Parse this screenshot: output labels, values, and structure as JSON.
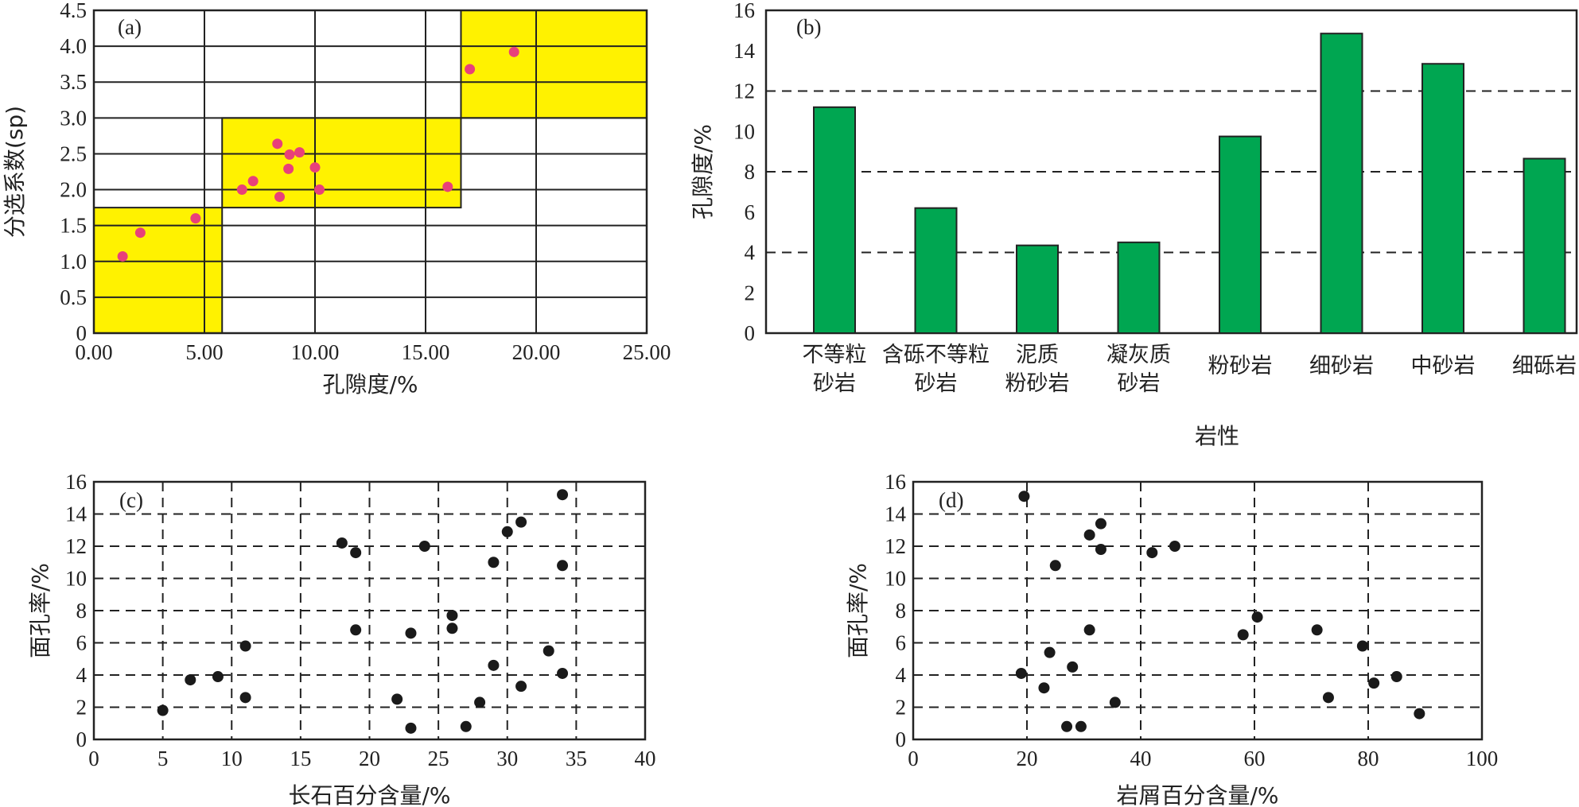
{
  "chart_data": [
    {
      "id": "a",
      "type": "scatter",
      "panel_label": "(a)",
      "xlabel": "孔隙度/%",
      "ylabel": "分选系数(sp)",
      "xlim": [
        0,
        25
      ],
      "ylim": [
        0,
        4.5
      ],
      "xticks": [
        "0.00",
        "5.00",
        "10.00",
        "15.00",
        "20.00",
        "25.00"
      ],
      "yticks": [
        "0",
        "0.5",
        "1.0",
        "1.5",
        "2.0",
        "2.5",
        "3.0",
        "3.5",
        "4.0",
        "4.5"
      ],
      "grid": true,
      "highlight_color": "#FFF200",
      "point_color": "#E8407A",
      "highlight_regions": [
        {
          "x": [
            0,
            5.8
          ],
          "y": [
            0,
            1.75
          ]
        },
        {
          "x": [
            5.8,
            16.6
          ],
          "y": [
            1.75,
            3.0
          ]
        },
        {
          "x": [
            16.6,
            25
          ],
          "y": [
            3.0,
            4.5
          ]
        }
      ],
      "points": [
        {
          "x": 1.3,
          "y": 1.07
        },
        {
          "x": 2.1,
          "y": 1.4
        },
        {
          "x": 4.6,
          "y": 1.6
        },
        {
          "x": 6.7,
          "y": 2.0
        },
        {
          "x": 7.2,
          "y": 2.12
        },
        {
          "x": 8.3,
          "y": 2.64
        },
        {
          "x": 8.4,
          "y": 1.9
        },
        {
          "x": 8.8,
          "y": 2.29
        },
        {
          "x": 8.85,
          "y": 2.49
        },
        {
          "x": 9.3,
          "y": 2.52
        },
        {
          "x": 10.0,
          "y": 2.31
        },
        {
          "x": 10.2,
          "y": 2.0
        },
        {
          "x": 16.0,
          "y": 2.04
        },
        {
          "x": 17.0,
          "y": 3.68
        },
        {
          "x": 19.0,
          "y": 3.92
        }
      ]
    },
    {
      "id": "b",
      "type": "bar",
      "panel_label": "(b)",
      "xlabel": "岩性",
      "ylabel": "孔隙度/%",
      "ylim": [
        0,
        16
      ],
      "yticks": [
        "0",
        "2",
        "4",
        "6",
        "8",
        "10",
        "12",
        "14",
        "16"
      ],
      "dashed_gridlines": [
        4,
        8,
        12
      ],
      "bar_color": "#00A651",
      "categories": [
        [
          "不等粒",
          "砂岩"
        ],
        [
          "含砾不等粒",
          "砂岩"
        ],
        [
          "泥质",
          "粉砂岩"
        ],
        [
          "凝灰质",
          "砂岩"
        ],
        [
          "粉砂岩"
        ],
        [
          "细砂岩"
        ],
        [
          "中砂岩"
        ],
        [
          "细砾岩"
        ]
      ],
      "values": [
        11.2,
        6.2,
        4.35,
        4.5,
        9.75,
        14.85,
        13.35,
        8.65
      ]
    },
    {
      "id": "c",
      "type": "scatter",
      "panel_label": "(c)",
      "xlabel": "长石百分含量/%",
      "ylabel": "面孔率/%",
      "xlim": [
        0,
        40
      ],
      "ylim": [
        0,
        16
      ],
      "xticks": [
        "0",
        "5",
        "10",
        "15",
        "20",
        "25",
        "30",
        "35",
        "40"
      ],
      "yticks": [
        "0",
        "2",
        "4",
        "6",
        "8",
        "10",
        "12",
        "14",
        "16"
      ],
      "grid": "dashed",
      "point_color": "#1a1a1a",
      "points": [
        {
          "x": 5,
          "y": 1.8
        },
        {
          "x": 7,
          "y": 3.7
        },
        {
          "x": 9,
          "y": 3.9
        },
        {
          "x": 11,
          "y": 2.6
        },
        {
          "x": 11,
          "y": 5.8
        },
        {
          "x": 18,
          "y": 12.2
        },
        {
          "x": 19,
          "y": 11.6
        },
        {
          "x": 19,
          "y": 6.8
        },
        {
          "x": 22,
          "y": 2.5
        },
        {
          "x": 23,
          "y": 0.7
        },
        {
          "x": 23,
          "y": 6.6
        },
        {
          "x": 24,
          "y": 12.0
        },
        {
          "x": 26,
          "y": 7.7
        },
        {
          "x": 26,
          "y": 6.9
        },
        {
          "x": 27,
          "y": 0.8
        },
        {
          "x": 28,
          "y": 2.3
        },
        {
          "x": 29,
          "y": 11.0
        },
        {
          "x": 29,
          "y": 4.6
        },
        {
          "x": 30,
          "y": 12.9
        },
        {
          "x": 31,
          "y": 13.5
        },
        {
          "x": 31,
          "y": 3.3
        },
        {
          "x": 33,
          "y": 5.5
        },
        {
          "x": 34,
          "y": 15.2
        },
        {
          "x": 34,
          "y": 10.8
        },
        {
          "x": 34,
          "y": 4.1
        }
      ]
    },
    {
      "id": "d",
      "type": "scatter",
      "panel_label": "(d)",
      "xlabel": "岩屑百分含量/%",
      "ylabel": "面孔率/%",
      "xlim": [
        0,
        100
      ],
      "ylim": [
        0,
        16
      ],
      "xticks": [
        "0",
        "20",
        "40",
        "60",
        "80",
        "100"
      ],
      "yticks": [
        "0",
        "2",
        "4",
        "6",
        "8",
        "10",
        "12",
        "14",
        "16"
      ],
      "grid": "dashed",
      "point_color": "#1a1a1a",
      "points": [
        {
          "x": 19,
          "y": 4.1
        },
        {
          "x": 19.5,
          "y": 15.1
        },
        {
          "x": 23,
          "y": 3.2
        },
        {
          "x": 24,
          "y": 5.4
        },
        {
          "x": 25,
          "y": 10.8
        },
        {
          "x": 27,
          "y": 0.8
        },
        {
          "x": 28,
          "y": 4.5
        },
        {
          "x": 29.5,
          "y": 0.8
        },
        {
          "x": 31,
          "y": 12.7
        },
        {
          "x": 31,
          "y": 6.8
        },
        {
          "x": 33,
          "y": 13.4
        },
        {
          "x": 33,
          "y": 11.8
        },
        {
          "x": 35.5,
          "y": 2.3
        },
        {
          "x": 42,
          "y": 11.6
        },
        {
          "x": 46,
          "y": 12.0
        },
        {
          "x": 58,
          "y": 6.5
        },
        {
          "x": 60.5,
          "y": 7.6
        },
        {
          "x": 71,
          "y": 6.8
        },
        {
          "x": 73,
          "y": 2.6
        },
        {
          "x": 79,
          "y": 5.8
        },
        {
          "x": 81,
          "y": 3.5
        },
        {
          "x": 85,
          "y": 3.9
        },
        {
          "x": 89,
          "y": 1.6
        }
      ]
    }
  ]
}
